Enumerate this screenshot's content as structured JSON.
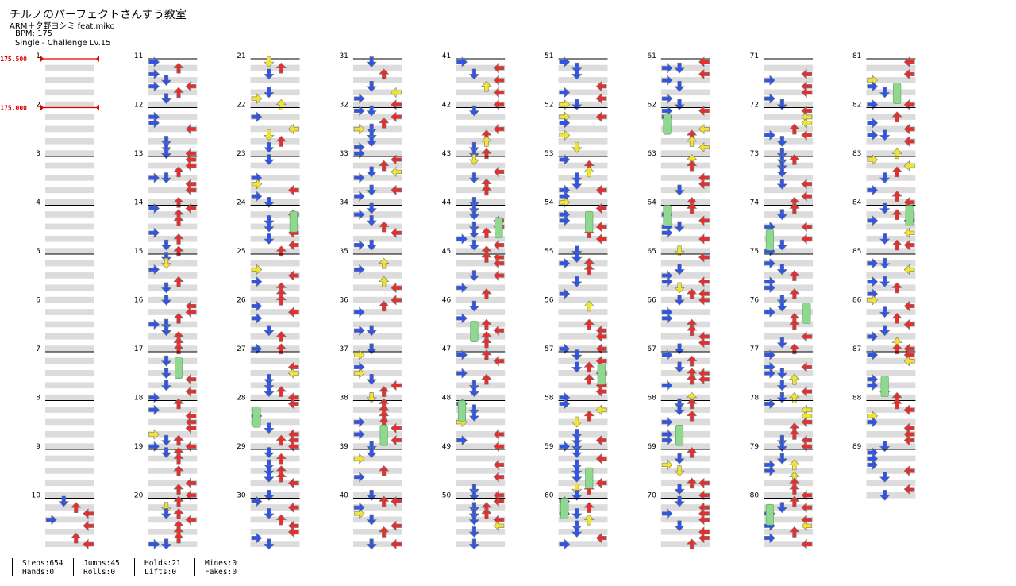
{
  "song": {
    "title": "チルノのパーフェクトさんすう教室",
    "artist": "ARM＋夕野ヨシミ feat.miko",
    "bpm_label": "BPM: 175",
    "chart_label": "Single - Challenge Lv.15"
  },
  "bpm_markers": [
    {
      "measure": 1,
      "label": "175.500"
    },
    {
      "measure": 2,
      "label": "175.000"
    }
  ],
  "measures": {
    "first": 1,
    "last": 89,
    "per_column": 10,
    "first_column_count": 10,
    "lanes": 4
  },
  "colors": {
    "left_arrow": "#2f55e6",
    "right_arrow": "#e52f2f",
    "up_arrow": "#e52f2f",
    "down_arrow": "#2f55e6",
    "alt_arrow": "#f2e530",
    "hold": "#8fd88f",
    "beat_shade": "#dcdcdc",
    "bpm_marker": "#e00000"
  },
  "stats": {
    "steps": "Steps:654",
    "hands": "Hands:0",
    "jumps": "Jumps:45",
    "rolls": "Rolls:0",
    "holds": "Holds:21",
    "lifts": "Lifts:0",
    "mines": "Mines:0",
    "fakes": "Fakes:0"
  }
}
